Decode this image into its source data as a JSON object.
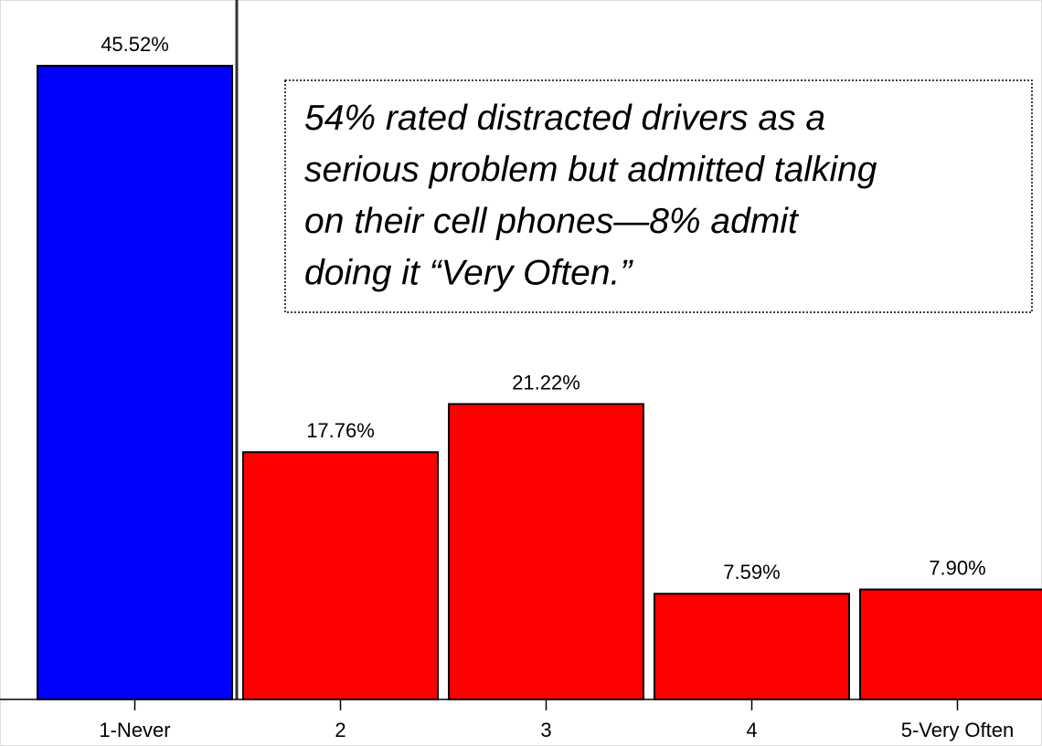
{
  "chart_data": {
    "type": "bar",
    "categories": [
      "1-Never",
      "2",
      "3",
      "4",
      "5-Very Often"
    ],
    "values": [
      45.52,
      17.76,
      21.22,
      7.59,
      7.9
    ],
    "value_labels": [
      "45.52%",
      "17.76%",
      "21.22%",
      "7.59%",
      "7.90%"
    ],
    "colors": [
      "#0000ff",
      "#ff0000",
      "#ff0000",
      "#ff0000",
      "#ff0000"
    ],
    "annotation": [
      "54% rated distracted drivers as a",
      "serious problem but admitted talking",
      "on their cell phones—8% admit",
      "doing it “Very Often.”"
    ]
  }
}
